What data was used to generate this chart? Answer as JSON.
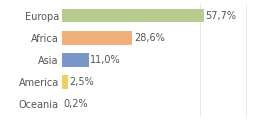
{
  "categories": [
    "Europa",
    "Africa",
    "Asia",
    "America",
    "Oceania"
  ],
  "values": [
    57.7,
    28.6,
    11.0,
    2.5,
    0.2
  ],
  "labels": [
    "57,7%",
    "28,6%",
    "11,0%",
    "2,5%",
    "0,2%"
  ],
  "bar_colors": [
    "#b5cc8e",
    "#f0b07a",
    "#7b96c8",
    "#f0d060",
    "#a0c8b0"
  ],
  "background_color": "#ffffff",
  "xlim_max": 75,
  "bar_height": 0.62,
  "label_fontsize": 7.0,
  "tick_fontsize": 7.0,
  "label_color": "#555555",
  "tick_color": "#555555",
  "grid_color": "#dddddd"
}
